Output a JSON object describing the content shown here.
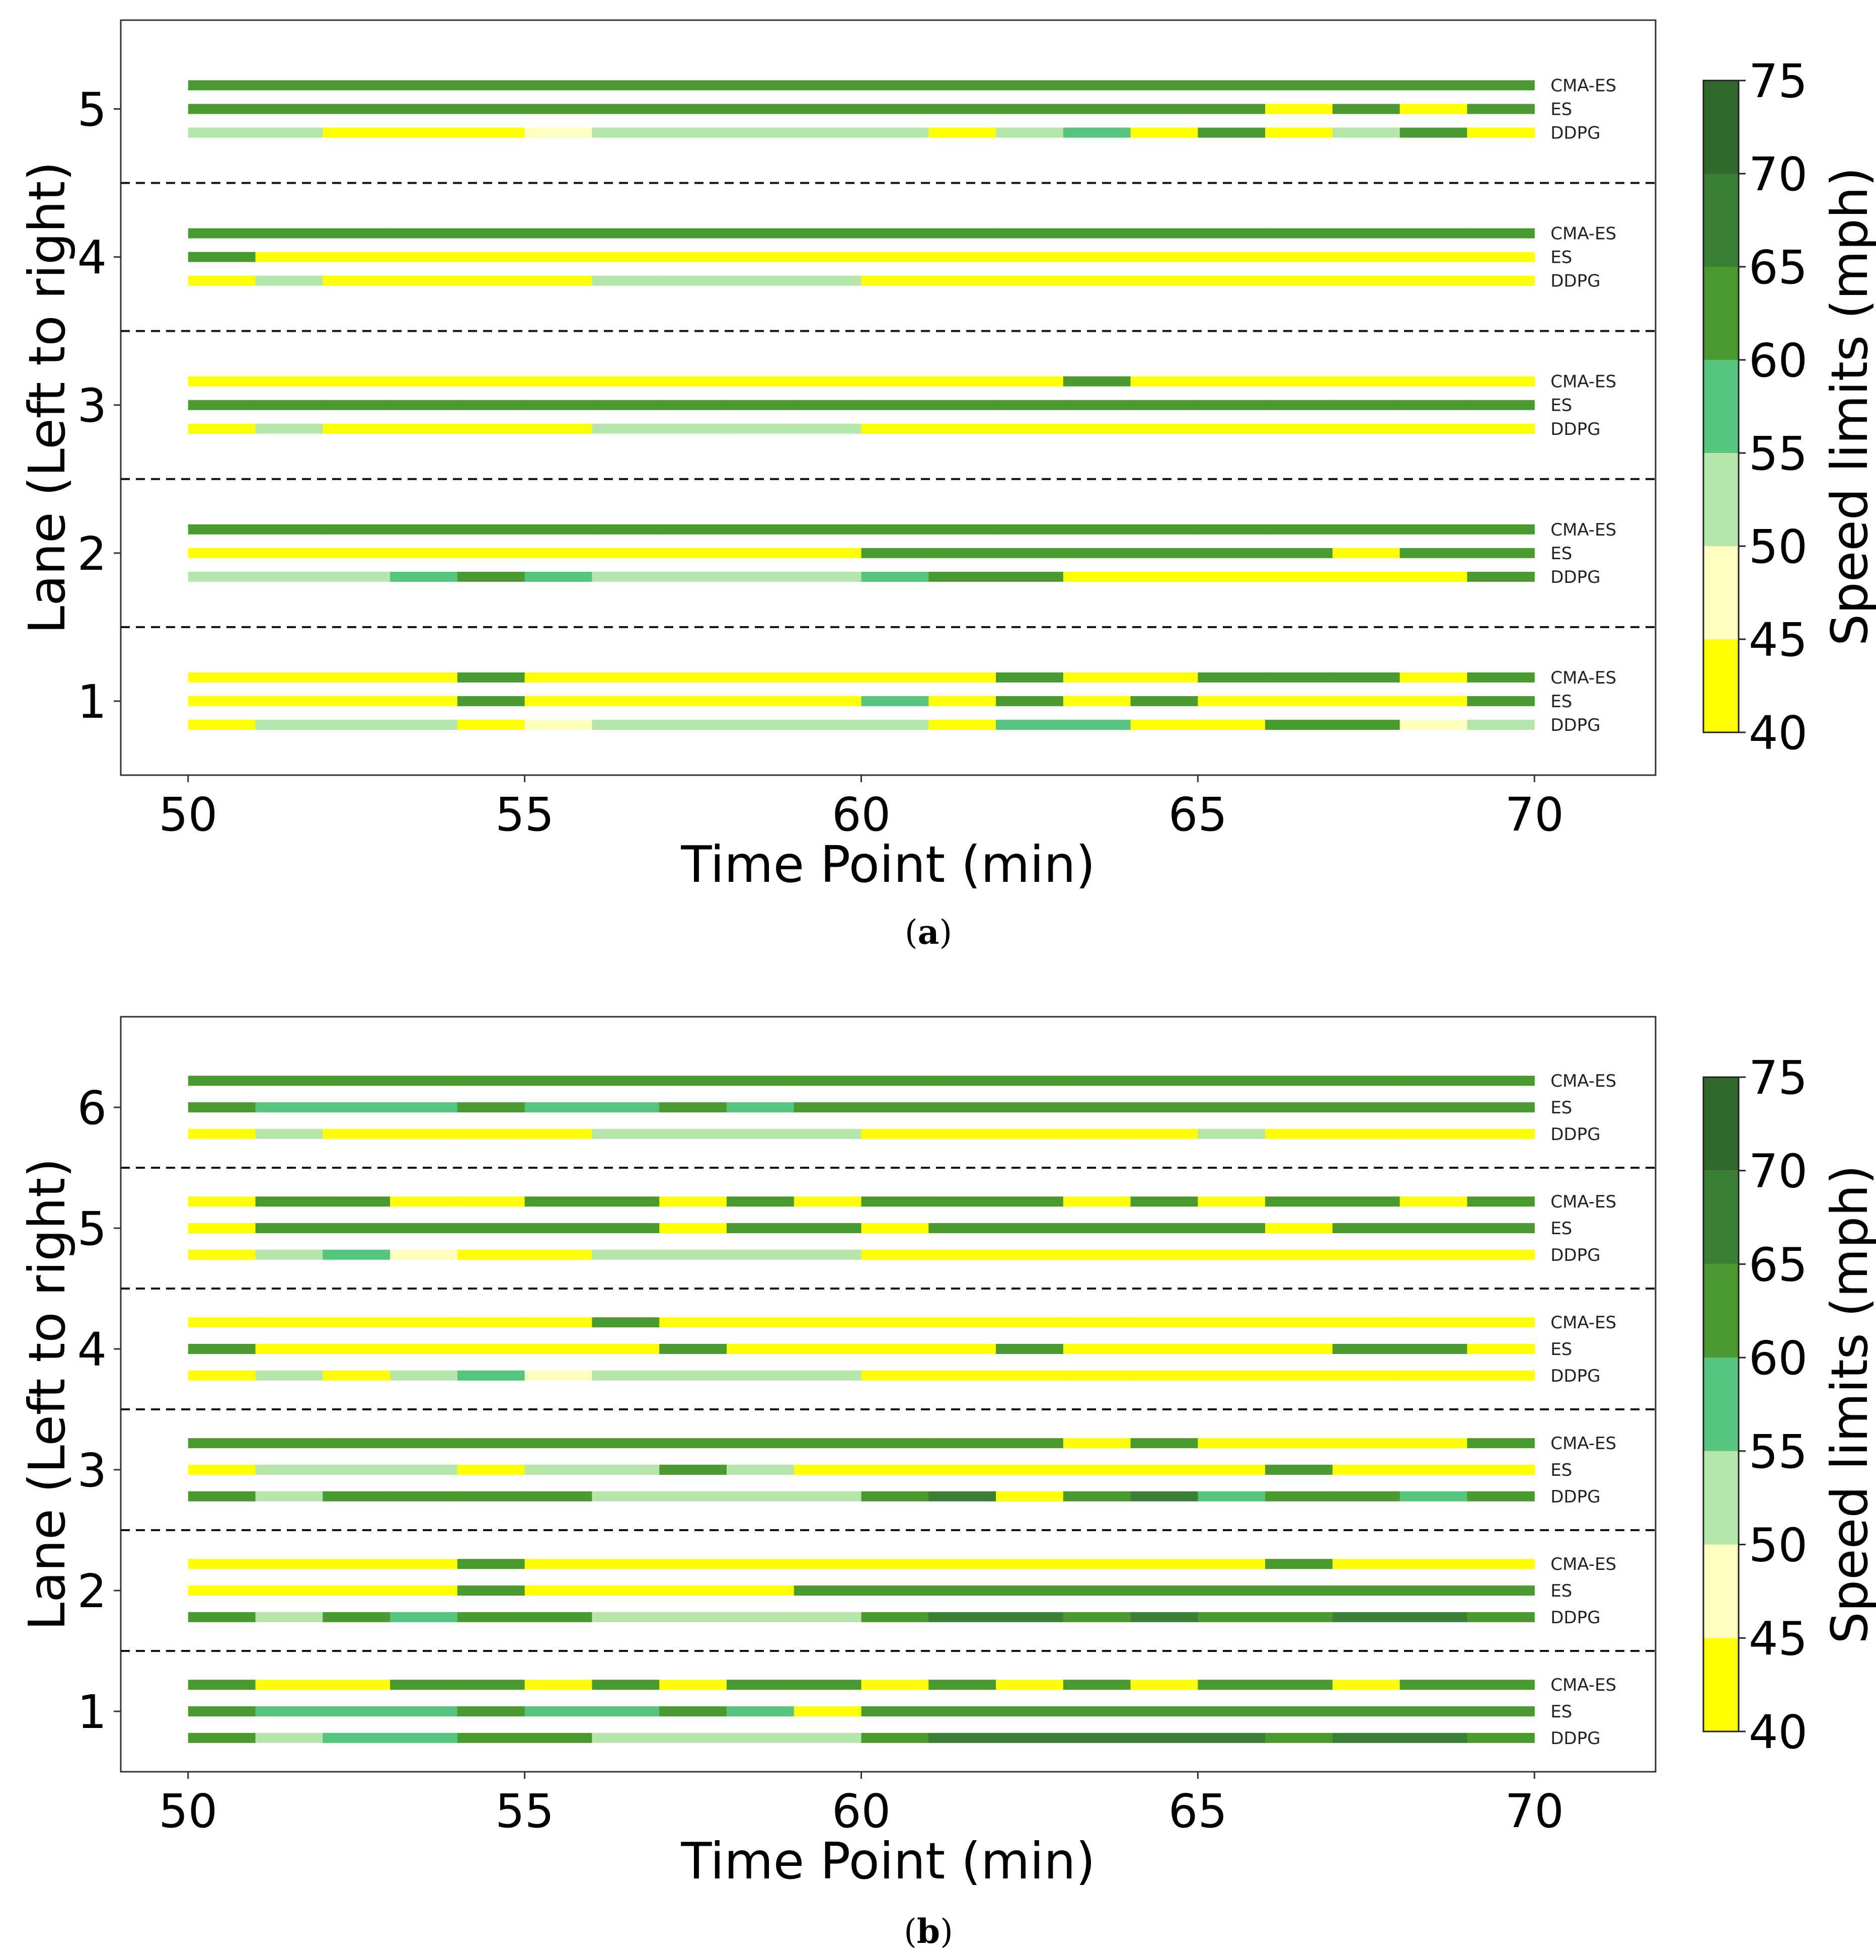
{
  "figure": {
    "methods": [
      "CMA-ES",
      "ES",
      "DDPG"
    ],
    "colorbar": {
      "label": "Speed limits (mph)",
      "ticks": [
        40,
        45,
        50,
        55,
        60,
        65,
        70,
        75
      ],
      "bin_colors": [
        "#ffff00",
        "#ffffc0",
        "#b5e6ac",
        "#55c47c",
        "#4a9b2f",
        "#3b7f35",
        "#31692c"
      ],
      "levels_to_color": {
        "40": "#ffff00",
        "45": "#ffffc0",
        "50": "#b5e6ac",
        "55": "#55c47c",
        "60": "#4a9b2f",
        "65": "#3b7f35",
        "70": "#31692c"
      }
    }
  },
  "chart_data": [
    {
      "type": "heatmap",
      "panel": "(a)",
      "caption_letter": "a",
      "xlabel": "Time Point (min)",
      "ylabel": "Lane (Left to right)",
      "xlim": [
        49,
        71.8
      ],
      "xticks": [
        50,
        55,
        60,
        65,
        70
      ],
      "ylim": [
        0.5,
        5.6
      ],
      "yticks": [
        1,
        2,
        3,
        4,
        5
      ],
      "time_start": 50,
      "time_step": 1,
      "lanes": [
        {
          "lane": 5,
          "CMA-ES": [
            60,
            60,
            60,
            60,
            60,
            60,
            60,
            60,
            60,
            60,
            60,
            60,
            60,
            60,
            60,
            60,
            60,
            60,
            60,
            60
          ],
          "ES": [
            60,
            60,
            60,
            60,
            60,
            60,
            60,
            60,
            60,
            60,
            60,
            60,
            60,
            60,
            60,
            60,
            40,
            60,
            40,
            60
          ],
          "DDPG": [
            50,
            50,
            40,
            40,
            40,
            45,
            50,
            50,
            50,
            50,
            50,
            40,
            50,
            55,
            40,
            60,
            40,
            50,
            60,
            40
          ]
        },
        {
          "lane": 4,
          "CMA-ES": [
            60,
            60,
            60,
            60,
            60,
            60,
            60,
            60,
            60,
            60,
            60,
            60,
            60,
            60,
            60,
            60,
            60,
            60,
            60,
            60
          ],
          "ES": [
            60,
            40,
            40,
            40,
            40,
            40,
            40,
            40,
            40,
            40,
            40,
            40,
            40,
            40,
            40,
            40,
            40,
            40,
            40,
            40
          ],
          "DDPG": [
            40,
            50,
            40,
            40,
            40,
            40,
            50,
            50,
            50,
            50,
            40,
            40,
            40,
            40,
            40,
            40,
            40,
            40,
            40,
            40
          ]
        },
        {
          "lane": 3,
          "CMA-ES": [
            40,
            40,
            40,
            40,
            40,
            40,
            40,
            40,
            40,
            40,
            40,
            40,
            40,
            60,
            40,
            40,
            40,
            40,
            40,
            40
          ],
          "ES": [
            60,
            60,
            60,
            60,
            60,
            60,
            60,
            60,
            60,
            60,
            60,
            60,
            60,
            60,
            60,
            60,
            60,
            60,
            60,
            60
          ],
          "DDPG": [
            40,
            50,
            40,
            40,
            40,
            40,
            50,
            50,
            50,
            50,
            40,
            40,
            40,
            40,
            40,
            40,
            40,
            40,
            40,
            40
          ]
        },
        {
          "lane": 2,
          "CMA-ES": [
            60,
            60,
            60,
            60,
            60,
            60,
            60,
            60,
            60,
            60,
            60,
            60,
            60,
            60,
            60,
            60,
            60,
            60,
            60,
            60
          ],
          "ES": [
            40,
            40,
            40,
            40,
            40,
            40,
            40,
            40,
            40,
            40,
            60,
            60,
            60,
            60,
            60,
            60,
            60,
            40,
            60,
            60
          ],
          "DDPG": [
            50,
            50,
            50,
            55,
            60,
            55,
            50,
            50,
            50,
            50,
            55,
            60,
            60,
            40,
            40,
            40,
            40,
            40,
            40,
            60
          ]
        },
        {
          "lane": 1,
          "CMA-ES": [
            40,
            40,
            40,
            40,
            60,
            40,
            40,
            40,
            40,
            40,
            40,
            40,
            60,
            40,
            40,
            60,
            60,
            60,
            40,
            60
          ],
          "ES": [
            40,
            40,
            40,
            40,
            60,
            40,
            40,
            40,
            40,
            40,
            55,
            40,
            60,
            40,
            60,
            40,
            40,
            40,
            40,
            60
          ],
          "DDPG": [
            40,
            50,
            50,
            50,
            40,
            45,
            50,
            50,
            50,
            50,
            50,
            40,
            55,
            55,
            40,
            40,
            60,
            60,
            45,
            50
          ]
        }
      ]
    },
    {
      "type": "heatmap",
      "panel": "(b)",
      "caption_letter": "b",
      "xlabel": "Time Point (min)",
      "ylabel": "Lane (Left to right)",
      "xlim": [
        49,
        71.8
      ],
      "xticks": [
        50,
        55,
        60,
        65,
        70
      ],
      "ylim": [
        0.5,
        6.75
      ],
      "yticks": [
        1,
        2,
        3,
        4,
        5,
        6
      ],
      "time_start": 50,
      "time_step": 1,
      "lanes": [
        {
          "lane": 6,
          "CMA-ES": [
            60,
            60,
            60,
            60,
            60,
            60,
            60,
            60,
            60,
            60,
            60,
            60,
            60,
            60,
            60,
            60,
            60,
            60,
            60,
            60
          ],
          "ES": [
            60,
            55,
            55,
            55,
            60,
            55,
            55,
            60,
            55,
            60,
            60,
            60,
            60,
            60,
            60,
            60,
            60,
            60,
            60,
            60
          ],
          "DDPG": [
            40,
            50,
            40,
            40,
            40,
            40,
            50,
            50,
            50,
            50,
            40,
            40,
            40,
            40,
            40,
            50,
            40,
            40,
            40,
            40
          ]
        },
        {
          "lane": 5,
          "CMA-ES": [
            40,
            60,
            60,
            40,
            40,
            60,
            60,
            40,
            60,
            40,
            60,
            60,
            60,
            40,
            60,
            40,
            60,
            60,
            40,
            60
          ],
          "ES": [
            40,
            60,
            60,
            60,
            60,
            60,
            60,
            40,
            60,
            60,
            40,
            60,
            60,
            60,
            60,
            60,
            40,
            60,
            60,
            60
          ],
          "DDPG": [
            40,
            50,
            55,
            45,
            40,
            40,
            50,
            50,
            50,
            50,
            40,
            40,
            40,
            40,
            40,
            40,
            40,
            40,
            40,
            40
          ]
        },
        {
          "lane": 4,
          "CMA-ES": [
            40,
            40,
            40,
            40,
            40,
            40,
            60,
            40,
            40,
            40,
            40,
            40,
            40,
            40,
            40,
            40,
            40,
            40,
            40,
            40
          ],
          "ES": [
            60,
            40,
            40,
            40,
            40,
            40,
            40,
            60,
            40,
            40,
            40,
            40,
            60,
            40,
            40,
            40,
            40,
            60,
            60,
            40
          ],
          "DDPG": [
            40,
            50,
            40,
            50,
            55,
            45,
            50,
            50,
            50,
            50,
            40,
            40,
            40,
            40,
            40,
            40,
            40,
            40,
            40,
            40
          ]
        },
        {
          "lane": 3,
          "CMA-ES": [
            60,
            60,
            60,
            60,
            60,
            60,
            60,
            60,
            60,
            60,
            60,
            60,
            60,
            40,
            60,
            40,
            40,
            40,
            40,
            60
          ],
          "ES": [
            40,
            50,
            50,
            50,
            40,
            50,
            50,
            60,
            50,
            40,
            40,
            40,
            40,
            40,
            40,
            40,
            60,
            40,
            40,
            40
          ],
          "DDPG": [
            60,
            50,
            60,
            60,
            60,
            60,
            50,
            50,
            50,
            50,
            60,
            65,
            40,
            60,
            65,
            55,
            60,
            60,
            55,
            60
          ]
        },
        {
          "lane": 2,
          "CMA-ES": [
            40,
            40,
            40,
            40,
            60,
            40,
            40,
            40,
            40,
            40,
            40,
            40,
            40,
            40,
            40,
            40,
            60,
            40,
            40,
            40
          ],
          "ES": [
            40,
            40,
            40,
            40,
            60,
            40,
            40,
            40,
            40,
            60,
            60,
            60,
            60,
            60,
            60,
            60,
            60,
            60,
            60,
            60
          ],
          "DDPG": [
            60,
            50,
            60,
            55,
            60,
            60,
            50,
            50,
            50,
            50,
            60,
            65,
            65,
            60,
            65,
            60,
            60,
            65,
            65,
            60
          ]
        },
        {
          "lane": 1,
          "CMA-ES": [
            60,
            40,
            40,
            60,
            60,
            40,
            60,
            40,
            60,
            60,
            40,
            60,
            40,
            60,
            40,
            60,
            60,
            40,
            60,
            60
          ],
          "ES": [
            60,
            55,
            55,
            55,
            60,
            55,
            55,
            60,
            55,
            40,
            60,
            60,
            60,
            60,
            60,
            60,
            60,
            60,
            60,
            60
          ],
          "DDPG": [
            60,
            50,
            55,
            55,
            60,
            60,
            50,
            50,
            50,
            50,
            60,
            65,
            65,
            65,
            65,
            65,
            60,
            65,
            65,
            60
          ]
        }
      ]
    }
  ]
}
